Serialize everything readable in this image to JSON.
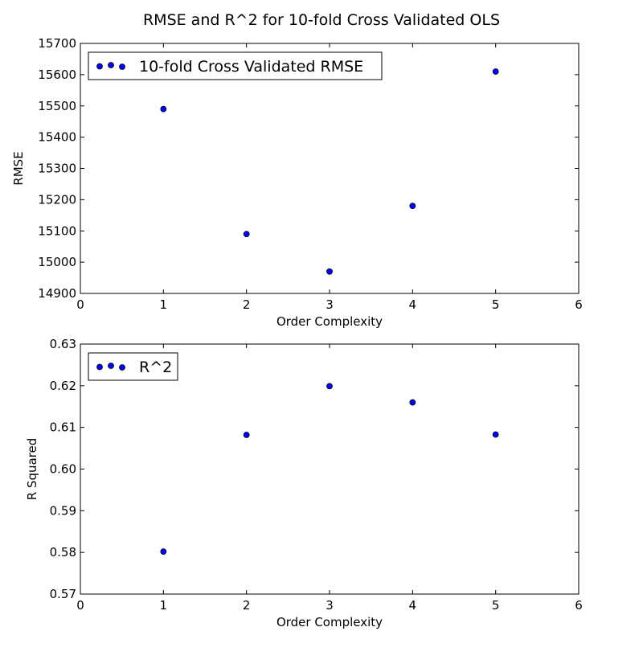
{
  "figure": {
    "title": "RMSE and R^2 for 10-fold Cross Validated OLS"
  },
  "chart_data": [
    {
      "type": "scatter",
      "xlabel": "Order Complexity",
      "ylabel": "RMSE",
      "xlim": [
        0,
        6
      ],
      "ylim": [
        14900,
        15700
      ],
      "xticks": [
        "0",
        "1",
        "2",
        "3",
        "4",
        "5",
        "6"
      ],
      "yticks": [
        "14900",
        "15000",
        "15100",
        "15200",
        "15300",
        "15400",
        "15500",
        "15600",
        "15700"
      ],
      "grid": false,
      "legend_position": "top-left",
      "series": [
        {
          "name": "10-fold Cross Validated RMSE",
          "color": "#0000ff",
          "x": [
            1,
            2,
            3,
            4,
            5
          ],
          "y": [
            15490,
            15090,
            14970,
            15180,
            15610
          ]
        }
      ]
    },
    {
      "type": "scatter",
      "xlabel": "Order Complexity",
      "ylabel": "R Squared",
      "xlim": [
        0,
        6
      ],
      "ylim": [
        0.57,
        0.63
      ],
      "xticks": [
        "0",
        "1",
        "2",
        "3",
        "4",
        "5",
        "6"
      ],
      "yticks": [
        "0.57",
        "0.58",
        "0.59",
        "0.60",
        "0.61",
        "0.62",
        "0.63"
      ],
      "grid": false,
      "legend_position": "top-left",
      "series": [
        {
          "name": "R^2",
          "color": "#0000ff",
          "x": [
            1,
            2,
            3,
            4,
            5
          ],
          "y": [
            0.5802,
            0.6082,
            0.6199,
            0.616,
            0.6083
          ]
        }
      ]
    }
  ]
}
